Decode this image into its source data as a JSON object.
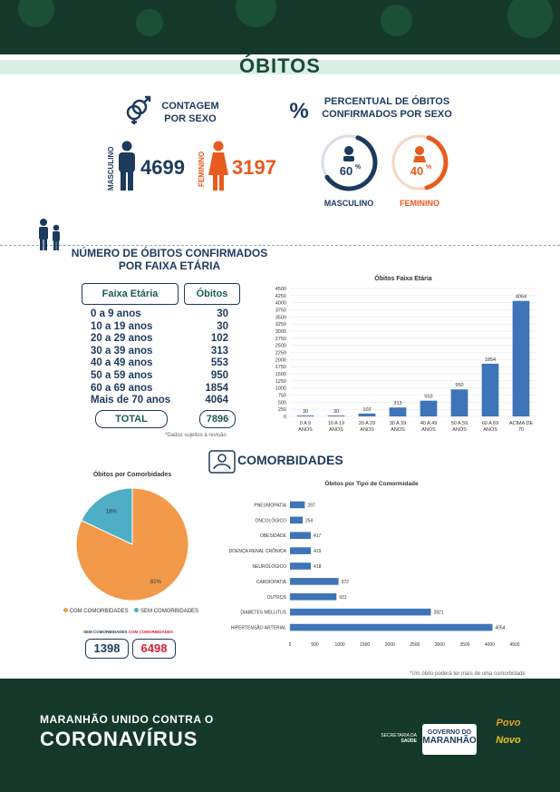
{
  "title": "ÓBITOS",
  "sex_count": {
    "heading_line1": "CONTAGEM",
    "heading_line2": "POR SEXO",
    "male_label": "MASCULINO",
    "male_value": "4699",
    "female_label": "FEMININO",
    "female_value": "3197"
  },
  "sex_percent": {
    "heading_line1": "PERCENTUAL DE ÓBITOS",
    "heading_line2": "CONFIRMADOS POR SEXO",
    "male_pct": 60,
    "male_pct_text": "60",
    "female_pct": 40,
    "female_pct_text": "40",
    "pct_sign": "%",
    "male_label": "MASCULINO",
    "female_label": "FEMININO"
  },
  "age_section": {
    "heading_line1": "NÚMERO DE ÓBITOS CONFIRMADOS",
    "heading_line2": "POR FAIXA ETÁRIA",
    "col1": "Faixa Etária",
    "col2": "Óbitos",
    "rows": [
      {
        "range": "0 a 9 anos",
        "value": "30"
      },
      {
        "range": "10 a 19 anos",
        "value": "30"
      },
      {
        "range": "20 a 29 anos",
        "value": "102"
      },
      {
        "range": "30 a 39 anos",
        "value": "313"
      },
      {
        "range": "40 a 49 anos",
        "value": "553"
      },
      {
        "range": "50 a 59 anos",
        "value": "950"
      },
      {
        "range": "60 a 69 anos",
        "value": "1854"
      },
      {
        "range": "Mais de 70 anos",
        "value": "4064"
      }
    ],
    "total_label": "TOTAL",
    "total_value": "7896",
    "note": "*Dados sujeitos à revisão"
  },
  "comorbidities": {
    "heading": "COMORBIDADES",
    "with_label": "COM COMORBIDADES",
    "without_label": "SEM COMORBIDADES",
    "without_value": "1398",
    "with_value": "6498",
    "note": "*Um óbito poderá ter mais de uma comorbidade"
  },
  "colors": {
    "navy": "#1c3a5c",
    "orange": "#e85a1e",
    "dark_green": "#14392a",
    "bar_blue": "#3e74b8",
    "pie_orange": "#f29a4a",
    "pie_teal": "#4eaec6",
    "red": "#d6213a"
  },
  "footer": {
    "line1": "MARANHÃO UNIDO CONTRA O",
    "line2": "CORONAVÍRUS",
    "secretaria": "SECRETARIA DA",
    "saude": "SAÚDE",
    "gov1": "GOVERNO DO",
    "gov2": "MARANHÃO",
    "slogan1": "Povo",
    "slogan2": "Novo"
  },
  "chart_data": [
    {
      "type": "bar",
      "title": "Óbitos Faixa Etária",
      "categories": [
        "0 A 9 ANOS",
        "10 A 19 ANOS",
        "20 A 29 ANOS",
        "30 A 39 ANOS",
        "40 A 49 ANOS",
        "50 A 59 ANOS",
        "60 A 69 ANOS",
        "ACIMA DE 70"
      ],
      "values": [
        30,
        30,
        102,
        313,
        553,
        950,
        1854,
        4064
      ],
      "ylim": [
        0,
        4500
      ],
      "yticks": [
        0,
        250,
        500,
        750,
        1000,
        1250,
        1500,
        1750,
        2000,
        2250,
        2500,
        2750,
        3000,
        3250,
        3500,
        3750,
        4000,
        4250,
        4500
      ],
      "grid": true
    },
    {
      "type": "pie",
      "title": "Óbitos por Comorbidades",
      "labels": [
        "COM COMORBIDADES",
        "SEM COMORBIDADES"
      ],
      "values": [
        82,
        18
      ],
      "value_labels": [
        "82%",
        "18%"
      ],
      "legend": "bottom"
    },
    {
      "type": "bar",
      "orientation": "horizontal",
      "title": "Óbitos por Tipo de Comormidade",
      "categories": [
        "PNEUMOPATIA",
        "ONCOLÓGICO",
        "OBESIDADE",
        "DOENÇA RENAL CRÔNICA",
        "NEUROLÓGICO",
        "CARDIOPATIA",
        "OUTROS",
        "DIABETES MELLITUS",
        "HIPERTENSÃO ARTERIAL"
      ],
      "values": [
        297,
        254,
        417,
        419,
        418,
        972,
        931,
        2821,
        4054
      ],
      "xlim": [
        0,
        4500
      ],
      "xticks": [
        0,
        500,
        1000,
        1500,
        2000,
        2500,
        3000,
        3500,
        4000,
        4500
      ]
    }
  ]
}
